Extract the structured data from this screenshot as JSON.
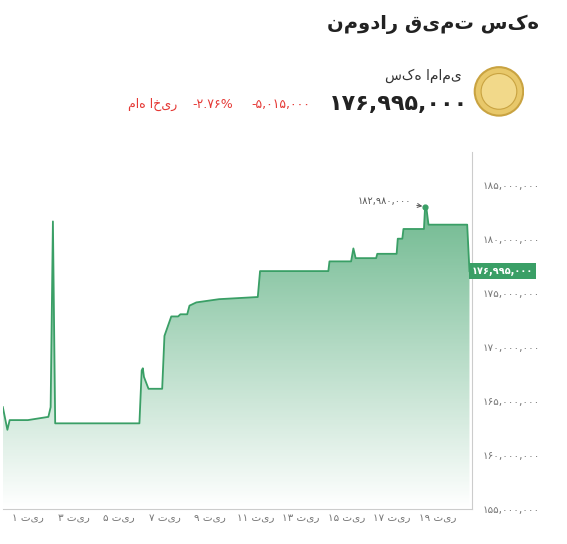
{
  "chart_data": {
    "type": "area",
    "title": "نمودار قیمت سکه",
    "header": {
      "coin": "سکه امامی",
      "price": "۱۷۶,۹۹۵,۰۰۰",
      "change": "-۵,۰۱۵,۰۰۰",
      "change_percent": "-۲.۷۶%",
      "period": "ماه اخیر"
    },
    "x": [
      -0.1,
      0.1,
      0.2,
      1.0,
      1.9,
      2.0,
      2.1,
      2.2,
      5.9,
      6.0,
      6.05,
      6.1,
      6.3,
      6.9,
      7.0,
      7.3,
      7.6,
      7.7,
      8.0,
      8.1,
      8.4,
      9.4,
      11.1,
      11.2,
      14.2,
      14.25,
      15.2,
      15.3,
      15.4,
      16.3,
      16.35,
      17.2,
      17.25,
      17.45,
      17.5,
      18.4,
      18.45,
      18.5,
      18.6,
      20.3,
      20.4
    ],
    "values": [
      164400000,
      162300000,
      163200000,
      163200000,
      163500000,
      164400000,
      181600000,
      162900000,
      162900000,
      167800000,
      168000000,
      167200000,
      166100000,
      166100000,
      171000000,
      172800000,
      172800000,
      173000000,
      173000000,
      173800000,
      174100000,
      174400000,
      174600000,
      177000000,
      177000000,
      177900000,
      177900000,
      179100000,
      178200000,
      178200000,
      178600000,
      178600000,
      180000000,
      180000000,
      180900000,
      180900000,
      182980000,
      182980000,
      181300000,
      181300000,
      176995000
    ],
    "color": "#3a9f66",
    "xlim": [
      -0.1,
      20.5
    ],
    "xticks": [
      {
        "value": 1,
        "label": "۱ تیر"
      },
      {
        "value": 3,
        "label": "۳ تیر"
      },
      {
        "value": 5,
        "label": "۵ تیر"
      },
      {
        "value": 7,
        "label": "۷ تیر"
      },
      {
        "value": 9,
        "label": "۹ تیر"
      },
      {
        "value": 11,
        "label": "۱۱ تیر"
      },
      {
        "value": 13,
        "label": "۱۳ تیر"
      },
      {
        "value": 15,
        "label": "۱۵ تیر"
      },
      {
        "value": 17,
        "label": "۱۷ تیر"
      },
      {
        "value": 19,
        "label": "۱۹ تیر"
      }
    ],
    "ylim": [
      155000000,
      188000000
    ],
    "yticks": [
      {
        "value": 155000000,
        "label": "۱۵۵,۰۰۰,۰۰۰"
      },
      {
        "value": 160000000,
        "label": "۱۶۰,۰۰۰,۰۰۰"
      },
      {
        "value": 165000000,
        "label": "۱۶۵,۰۰۰,۰۰۰"
      },
      {
        "value": 170000000,
        "label": "۱۷۰,۰۰۰,۰۰۰"
      },
      {
        "value": 175000000,
        "label": "۱۷۵,۰۰۰,۰۰۰"
      },
      {
        "value": 180000000,
        "label": "۱۸۰,۰۰۰,۰۰۰"
      },
      {
        "value": 185000000,
        "label": "۱۸۵,۰۰۰,۰۰۰"
      }
    ],
    "annotations": [
      {
        "text": "۱۸۲,۹۸۰,۰۰۰",
        "x": 18.45,
        "y": 182980000
      }
    ],
    "last_value": {
      "value": 176995000,
      "label": "۱۷۶,۹۹۵,۰۰۰"
    },
    "grid": false
  }
}
